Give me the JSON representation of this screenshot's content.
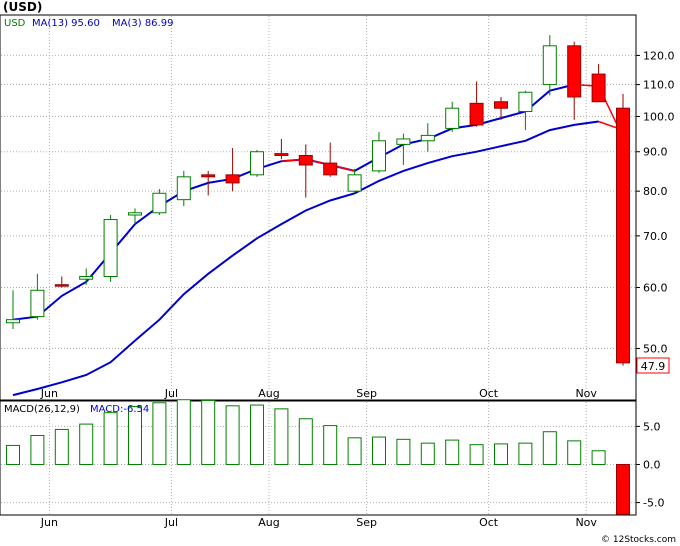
{
  "header": {
    "currency": "(USD)"
  },
  "legend": [
    {
      "text": "USD",
      "color": "#008000"
    },
    {
      "text": "MA(13)  95.60",
      "color": "#0000cc"
    },
    {
      "text": "MA(3)  86.99",
      "color": "#0000cc"
    }
  ],
  "last_price_label": "47.9",
  "macd_legend": [
    {
      "text": "MACD(26,12,9)",
      "color": "#000000"
    },
    {
      "text": "MACD:-6.54",
      "color": "#0000cc"
    }
  ],
  "watermark": "© 12Stocks.com",
  "chart_data": [
    {
      "type": "candlestick",
      "title": "(USD)",
      "y_scale": "log",
      "ylim": [
        43,
        135
      ],
      "y_ticks": [
        50.0,
        60.0,
        70.0,
        80.0,
        90.0,
        100.0,
        110.0,
        120.0
      ],
      "y_tick_labels": [
        "50.0",
        "60.0",
        "70.0",
        "80.0",
        "90.0",
        "100.0",
        "110.0",
        "120.0"
      ],
      "x_labels": [
        "Jun",
        "Jul",
        "Aug",
        "Sep",
        "Oct",
        "Nov"
      ],
      "x_label_index": [
        1,
        6,
        10,
        14,
        19,
        23
      ],
      "candles": [
        {
          "o": 54.0,
          "h": 59.5,
          "l": 53.0,
          "c": 54.5
        },
        {
          "o": 55.0,
          "h": 62.5,
          "l": 54.5,
          "c": 59.5
        },
        {
          "o": 60.5,
          "h": 62.0,
          "l": 60.0,
          "c": 60.3
        },
        {
          "o": 61.5,
          "h": 63.5,
          "l": 60.5,
          "c": 62.0
        },
        {
          "o": 62.0,
          "h": 74.5,
          "l": 61.0,
          "c": 73.5
        },
        {
          "o": 74.5,
          "h": 76.0,
          "l": 72.5,
          "c": 75.0
        },
        {
          "o": 75.0,
          "h": 80.5,
          "l": 74.5,
          "c": 79.5
        },
        {
          "o": 78.0,
          "h": 85.0,
          "l": 76.5,
          "c": 83.5
        },
        {
          "o": 84.0,
          "h": 85.0,
          "l": 79.0,
          "c": 83.5
        },
        {
          "o": 84.0,
          "h": 91.0,
          "l": 80.0,
          "c": 82.0
        },
        {
          "o": 84.0,
          "h": 90.5,
          "l": 83.5,
          "c": 90.0
        },
        {
          "o": 89.5,
          "h": 93.5,
          "l": 88.0,
          "c": 89.0
        },
        {
          "o": 89.0,
          "h": 92.0,
          "l": 78.5,
          "c": 86.5
        },
        {
          "o": 87.0,
          "h": 92.5,
          "l": 83.5,
          "c": 84.0
        },
        {
          "o": 80.0,
          "h": 85.5,
          "l": 79.5,
          "c": 84.0
        },
        {
          "o": 85.0,
          "h": 95.5,
          "l": 84.5,
          "c": 93.0
        },
        {
          "o": 92.0,
          "h": 95.0,
          "l": 86.5,
          "c": 93.5
        },
        {
          "o": 93.0,
          "h": 98.0,
          "l": 90.0,
          "c": 94.5
        },
        {
          "o": 96.5,
          "h": 104.5,
          "l": 95.5,
          "c": 102.5
        },
        {
          "o": 104.0,
          "h": 111.0,
          "l": 97.0,
          "c": 97.5
        },
        {
          "o": 104.5,
          "h": 106.0,
          "l": 99.0,
          "c": 102.5
        },
        {
          "o": 101.5,
          "h": 108.0,
          "l": 96.0,
          "c": 107.5
        },
        {
          "o": 110.0,
          "h": 127.5,
          "l": 106.5,
          "c": 123.5
        },
        {
          "o": 123.5,
          "h": 125.0,
          "l": 99.0,
          "c": 106.0
        },
        {
          "o": 113.5,
          "h": 117.0,
          "l": 104.5,
          "c": 104.5
        },
        {
          "o": 102.5,
          "h": 107.0,
          "l": 47.5,
          "c": 47.9
        }
      ],
      "series": [
        {
          "name": "MA(13)",
          "color": "#0000cc",
          "values": [
            43.5,
            44.3,
            45.2,
            46.2,
            48.0,
            51.2,
            54.5,
            58.8,
            62.5,
            66.0,
            69.5,
            72.5,
            75.5,
            77.8,
            79.5,
            82.5,
            85.0,
            87.0,
            88.8,
            90.0,
            91.5,
            93.0,
            96.0,
            97.5,
            98.5,
            null
          ]
        },
        {
          "name": "MA(3)",
          "color": "#0000cc",
          "values": [
            54.5,
            55.0,
            58.5,
            61.0,
            66.5,
            72.5,
            76.5,
            80.0,
            82.0,
            83.0,
            85.5,
            87.5,
            88.0,
            86.5,
            85.0,
            88.5,
            92.0,
            93.5,
            96.5,
            97.5,
            99.5,
            101.5,
            108.0,
            110.0,
            null,
            null
          ]
        },
        {
          "name": "MA(3) projection",
          "color": "#ff0000",
          "values": [
            null,
            null,
            null,
            null,
            null,
            null,
            null,
            null,
            null,
            null,
            null,
            87.5,
            88.0,
            86.5,
            85.0,
            null,
            null,
            null,
            null,
            null,
            null,
            null,
            null,
            110.0,
            109.5,
            94.0
          ]
        },
        {
          "name": "MA(13) projection",
          "color": "#ff0000",
          "values": [
            null,
            null,
            null,
            null,
            null,
            null,
            null,
            null,
            null,
            null,
            null,
            null,
            null,
            null,
            null,
            null,
            null,
            null,
            null,
            null,
            null,
            null,
            null,
            null,
            98.5,
            96.0
          ]
        }
      ],
      "up_color": "#008000",
      "down_color": "#ff0000",
      "grid": true
    },
    {
      "type": "bar",
      "title": "MACD(26,12,9)",
      "ylim": [
        -6.5,
        8.2
      ],
      "y_ticks": [
        5.0,
        0.0,
        -5.0
      ],
      "y_tick_labels": [
        "5.0",
        "0.0",
        "-5.0"
      ],
      "x_labels": [
        "Jun",
        "Jul",
        "Aug",
        "Sep",
        "Oct",
        "Nov"
      ],
      "x_label_index": [
        1,
        6,
        10,
        14,
        19,
        23
      ],
      "values": [
        2.5,
        3.8,
        4.6,
        5.3,
        6.8,
        7.6,
        8.1,
        8.5,
        8.4,
        7.7,
        7.8,
        7.3,
        6.0,
        5.1,
        3.5,
        3.6,
        3.3,
        2.8,
        3.2,
        2.6,
        2.7,
        2.8,
        4.3,
        3.1,
        1.8,
        -6.54
      ],
      "positive_color": "#008000",
      "negative_color": "#ff0000",
      "grid": true
    }
  ]
}
